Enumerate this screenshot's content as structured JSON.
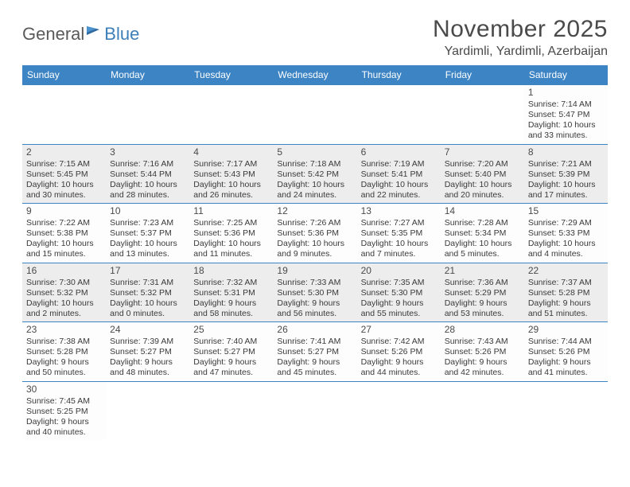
{
  "brand": {
    "general": "General",
    "blue": "Blue"
  },
  "title": "November 2025",
  "location": "Yardimli, Yardimli, Azerbaijan",
  "colors": {
    "header_bg": "#3d84c4",
    "header_text": "#ffffff",
    "shaded_bg": "#ededed",
    "rule": "#3d84c4",
    "body_text": "#3a3a3a"
  },
  "weekdays": [
    "Sunday",
    "Monday",
    "Tuesday",
    "Wednesday",
    "Thursday",
    "Friday",
    "Saturday"
  ],
  "weeks": [
    [
      null,
      null,
      null,
      null,
      null,
      null,
      {
        "n": "1",
        "sr": "7:14 AM",
        "ss": "5:47 PM",
        "dl": "10 hours and 33 minutes."
      }
    ],
    [
      {
        "n": "2",
        "sr": "7:15 AM",
        "ss": "5:45 PM",
        "dl": "10 hours and 30 minutes."
      },
      {
        "n": "3",
        "sr": "7:16 AM",
        "ss": "5:44 PM",
        "dl": "10 hours and 28 minutes."
      },
      {
        "n": "4",
        "sr": "7:17 AM",
        "ss": "5:43 PM",
        "dl": "10 hours and 26 minutes."
      },
      {
        "n": "5",
        "sr": "7:18 AM",
        "ss": "5:42 PM",
        "dl": "10 hours and 24 minutes."
      },
      {
        "n": "6",
        "sr": "7:19 AM",
        "ss": "5:41 PM",
        "dl": "10 hours and 22 minutes."
      },
      {
        "n": "7",
        "sr": "7:20 AM",
        "ss": "5:40 PM",
        "dl": "10 hours and 20 minutes."
      },
      {
        "n": "8",
        "sr": "7:21 AM",
        "ss": "5:39 PM",
        "dl": "10 hours and 17 minutes."
      }
    ],
    [
      {
        "n": "9",
        "sr": "7:22 AM",
        "ss": "5:38 PM",
        "dl": "10 hours and 15 minutes."
      },
      {
        "n": "10",
        "sr": "7:23 AM",
        "ss": "5:37 PM",
        "dl": "10 hours and 13 minutes."
      },
      {
        "n": "11",
        "sr": "7:25 AM",
        "ss": "5:36 PM",
        "dl": "10 hours and 11 minutes."
      },
      {
        "n": "12",
        "sr": "7:26 AM",
        "ss": "5:36 PM",
        "dl": "10 hours and 9 minutes."
      },
      {
        "n": "13",
        "sr": "7:27 AM",
        "ss": "5:35 PM",
        "dl": "10 hours and 7 minutes."
      },
      {
        "n": "14",
        "sr": "7:28 AM",
        "ss": "5:34 PM",
        "dl": "10 hours and 5 minutes."
      },
      {
        "n": "15",
        "sr": "7:29 AM",
        "ss": "5:33 PM",
        "dl": "10 hours and 4 minutes."
      }
    ],
    [
      {
        "n": "16",
        "sr": "7:30 AM",
        "ss": "5:32 PM",
        "dl": "10 hours and 2 minutes."
      },
      {
        "n": "17",
        "sr": "7:31 AM",
        "ss": "5:32 PM",
        "dl": "10 hours and 0 minutes."
      },
      {
        "n": "18",
        "sr": "7:32 AM",
        "ss": "5:31 PM",
        "dl": "9 hours and 58 minutes."
      },
      {
        "n": "19",
        "sr": "7:33 AM",
        "ss": "5:30 PM",
        "dl": "9 hours and 56 minutes."
      },
      {
        "n": "20",
        "sr": "7:35 AM",
        "ss": "5:30 PM",
        "dl": "9 hours and 55 minutes."
      },
      {
        "n": "21",
        "sr": "7:36 AM",
        "ss": "5:29 PM",
        "dl": "9 hours and 53 minutes."
      },
      {
        "n": "22",
        "sr": "7:37 AM",
        "ss": "5:28 PM",
        "dl": "9 hours and 51 minutes."
      }
    ],
    [
      {
        "n": "23",
        "sr": "7:38 AM",
        "ss": "5:28 PM",
        "dl": "9 hours and 50 minutes."
      },
      {
        "n": "24",
        "sr": "7:39 AM",
        "ss": "5:27 PM",
        "dl": "9 hours and 48 minutes."
      },
      {
        "n": "25",
        "sr": "7:40 AM",
        "ss": "5:27 PM",
        "dl": "9 hours and 47 minutes."
      },
      {
        "n": "26",
        "sr": "7:41 AM",
        "ss": "5:27 PM",
        "dl": "9 hours and 45 minutes."
      },
      {
        "n": "27",
        "sr": "7:42 AM",
        "ss": "5:26 PM",
        "dl": "9 hours and 44 minutes."
      },
      {
        "n": "28",
        "sr": "7:43 AM",
        "ss": "5:26 PM",
        "dl": "9 hours and 42 minutes."
      },
      {
        "n": "29",
        "sr": "7:44 AM",
        "ss": "5:26 PM",
        "dl": "9 hours and 41 minutes."
      }
    ],
    [
      {
        "n": "30",
        "sr": "7:45 AM",
        "ss": "5:25 PM",
        "dl": "9 hours and 40 minutes."
      },
      null,
      null,
      null,
      null,
      null,
      null
    ]
  ],
  "labels": {
    "sunrise": "Sunrise:",
    "sunset": "Sunset:",
    "daylight": "Daylight:"
  }
}
